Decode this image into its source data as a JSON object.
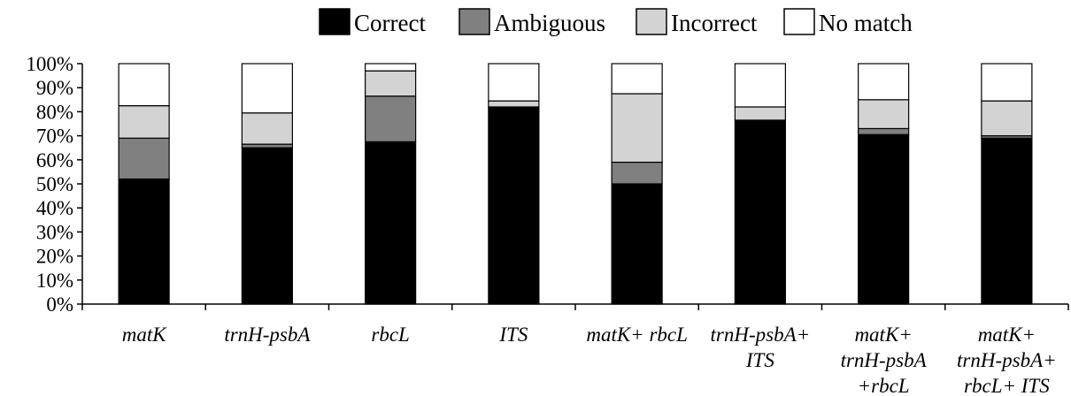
{
  "chart_data": {
    "type": "bar",
    "stacked": true,
    "categories": [
      [
        "matK"
      ],
      [
        "trnH-psbA"
      ],
      [
        "rbcL"
      ],
      [
        "ITS"
      ],
      [
        "matK+ rbcL"
      ],
      [
        "trnH-psbA+",
        "ITS"
      ],
      [
        "matK+",
        "trnH-psbA",
        "+rbcL"
      ],
      [
        "matK+",
        "trnH-psbA+",
        "rbcL+ ITS"
      ]
    ],
    "series": [
      {
        "name": "Correct",
        "color": "#000000",
        "values": [
          52,
          65,
          67.5,
          82,
          50,
          76.5,
          70.5,
          69
        ]
      },
      {
        "name": "Ambiguous",
        "color": "#808080",
        "values": [
          17,
          1.5,
          19,
          0,
          9,
          0,
          2.5,
          1
        ]
      },
      {
        "name": "Incorrect",
        "color": "#d3d3d3",
        "values": [
          13.5,
          13,
          10.5,
          2.5,
          28.5,
          5.5,
          12,
          14.5
        ]
      },
      {
        "name": "No match",
        "color": "#ffffff",
        "values": [
          17.5,
          20.5,
          3,
          15.5,
          12.5,
          18,
          15,
          15.5
        ]
      }
    ],
    "yticks": [
      "0%",
      "10%",
      "20%",
      "30%",
      "40%",
      "50%",
      "60%",
      "70%",
      "80%",
      "90%",
      "100%"
    ],
    "ylim": [
      0,
      100
    ],
    "legend_position": "top-right",
    "grid": false
  }
}
